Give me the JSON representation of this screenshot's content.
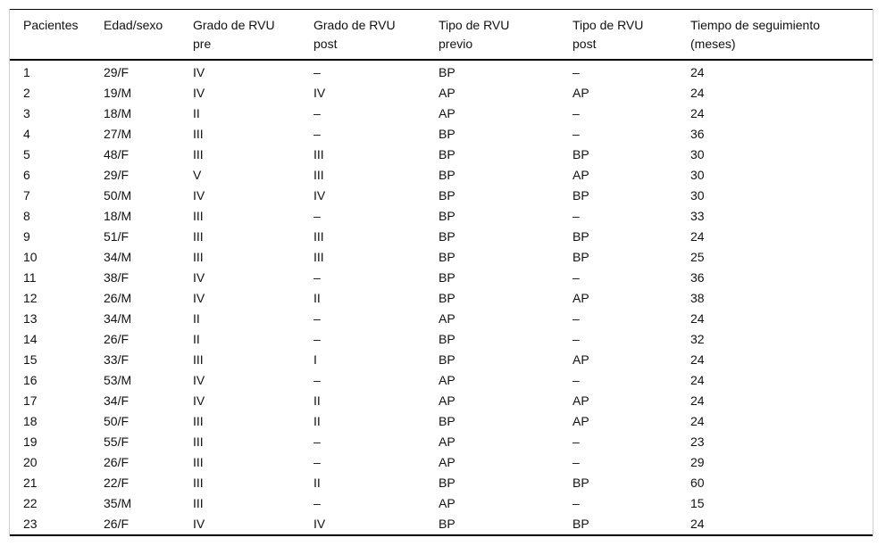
{
  "table": {
    "columns": [
      {
        "line1": "Pacientes",
        "line2": ""
      },
      {
        "line1": "Edad/sexo",
        "line2": ""
      },
      {
        "line1": "Grado de RVU",
        "line2": "pre"
      },
      {
        "line1": "Grado de RVU",
        "line2": "post"
      },
      {
        "line1": "Tipo de RVU",
        "line2": "previo"
      },
      {
        "line1": "Tipo de RVU",
        "line2": "post"
      },
      {
        "line1": "Tiempo de seguimiento",
        "line2": "(meses)"
      }
    ],
    "rows": [
      [
        "1",
        "29/F",
        "IV",
        "–",
        "BP",
        "–",
        "24"
      ],
      [
        "2",
        "19/M",
        "IV",
        "IV",
        "AP",
        "AP",
        "24"
      ],
      [
        "3",
        "18/M",
        "II",
        "–",
        "AP",
        "–",
        "24"
      ],
      [
        "4",
        "27/M",
        "III",
        "–",
        "BP",
        "–",
        "36"
      ],
      [
        "5",
        "48/F",
        "III",
        "III",
        "BP",
        "BP",
        "30"
      ],
      [
        "6",
        "29/F",
        "V",
        "III",
        "BP",
        "AP",
        "30"
      ],
      [
        "7",
        "50/M",
        "IV",
        "IV",
        "BP",
        "BP",
        "30"
      ],
      [
        "8",
        "18/M",
        "III",
        "–",
        "BP",
        "–",
        "33"
      ],
      [
        "9",
        "51/F",
        "III",
        "III",
        "BP",
        "BP",
        "24"
      ],
      [
        "10",
        "34/M",
        "III",
        "III",
        "BP",
        "BP",
        "25"
      ],
      [
        "11",
        "38/F",
        "IV",
        "–",
        "BP",
        "–",
        "36"
      ],
      [
        "12",
        "26/M",
        "IV",
        "II",
        "BP",
        "AP",
        "38"
      ],
      [
        "13",
        "34/M",
        "II",
        "–",
        "AP",
        "–",
        "24"
      ],
      [
        "14",
        "26/F",
        "II",
        "–",
        "BP",
        "–",
        "32"
      ],
      [
        "15",
        "33/F",
        "III",
        "I",
        "BP",
        "AP",
        "24"
      ],
      [
        "16",
        "53/M",
        "IV",
        "–",
        "AP",
        "–",
        "24"
      ],
      [
        "17",
        "34/F",
        "IV",
        "II",
        "AP",
        "AP",
        "24"
      ],
      [
        "18",
        "50/F",
        "III",
        "II",
        "BP",
        "AP",
        "24"
      ],
      [
        "19",
        "55/F",
        "III",
        "–",
        "AP",
        "–",
        "23"
      ],
      [
        "20",
        "26/F",
        "III",
        "–",
        "AP",
        "–",
        "29"
      ],
      [
        "21",
        "22/F",
        "III",
        "II",
        "BP",
        "BP",
        "60"
      ],
      [
        "22",
        "35/M",
        "III",
        "–",
        "AP",
        "–",
        "15"
      ],
      [
        "23",
        "26/F",
        "IV",
        "IV",
        "BP",
        "BP",
        "24"
      ]
    ]
  },
  "colors": {
    "rule": "#000000",
    "side_border": "#cfcfcf",
    "text": "#111111",
    "background": "#ffffff"
  }
}
